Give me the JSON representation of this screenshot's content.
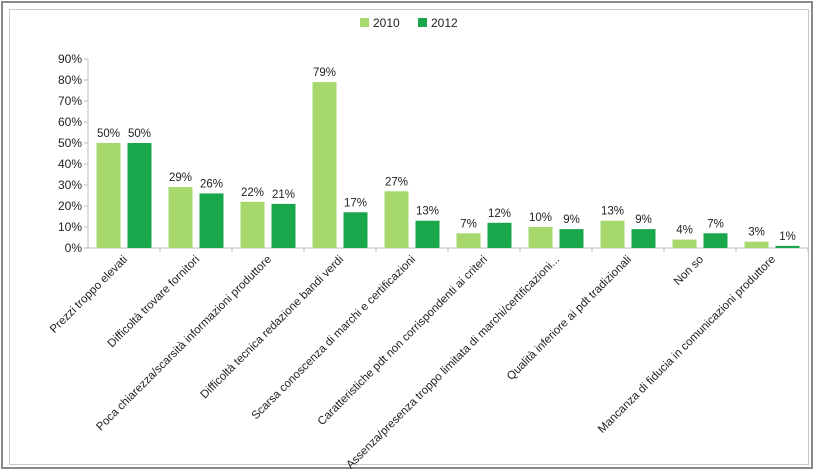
{
  "chart_data": {
    "type": "bar",
    "categories": [
      "Prezzi troppo elevati",
      "Difficoltà trovare fornitori",
      "Poca chiarezza/scarsità informazioni produttore",
      "Difficoltà tecnica redazione bandi verdi",
      "Scarsa conoscenza di marchi e certificazioni",
      "Caratteristiche pdt non corrispondenti ai criteri",
      "Assenza/presenza troppo limitata di marchi/certificazioni...",
      "Qualità inferiore ai pdt tradizionali",
      "Non so",
      "Mancanza di fiducia in comunicazioni produttore"
    ],
    "series": [
      {
        "name": "2010",
        "color": "#a6d86e",
        "values": [
          50,
          29,
          22,
          79,
          27,
          7,
          10,
          13,
          4,
          3
        ],
        "labels": [
          "50%",
          "29%",
          "22%",
          "79%",
          "27%",
          "7%",
          "10%",
          "13%",
          "4%",
          "3%"
        ]
      },
      {
        "name": "2012",
        "color": "#1aa64a",
        "values": [
          50,
          26,
          21,
          17,
          13,
          12,
          9,
          9,
          7,
          1
        ],
        "labels": [
          "50%",
          "26%",
          "21%",
          "17%",
          "13%",
          "12%",
          "9%",
          "9%",
          "7%",
          "1%"
        ]
      }
    ],
    "ylim": [
      0,
      90
    ],
    "yticks": [
      "0%",
      "10%",
      "20%",
      "30%",
      "40%",
      "50%",
      "60%",
      "70%",
      "80%",
      "90%"
    ],
    "title": "",
    "xlabel": "",
    "ylabel": "",
    "legend_position": "top-center",
    "grid": false
  }
}
